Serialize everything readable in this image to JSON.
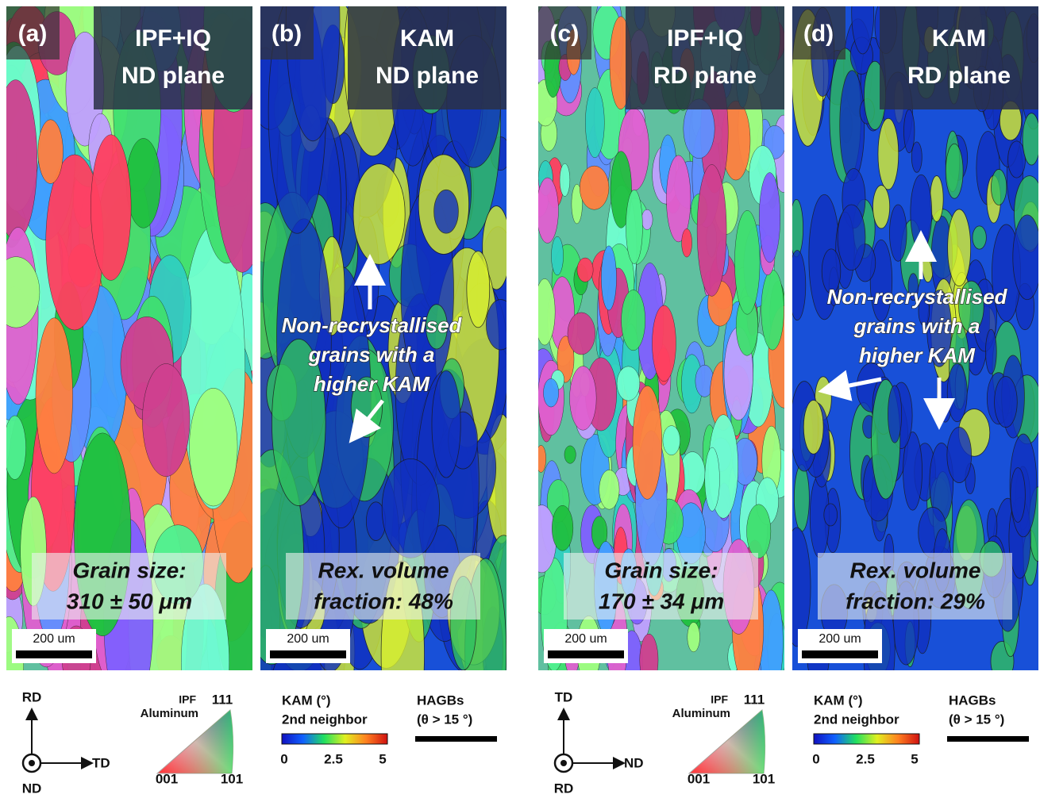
{
  "panels": [
    {
      "label": "(a)",
      "title": [
        "IPF+IQ",
        "ND plane"
      ],
      "caption": [
        "Grain size:",
        "310 ± 50 μm"
      ],
      "scale_bar": "200 um"
    },
    {
      "label": "(b)",
      "title": [
        "KAM",
        "ND plane"
      ],
      "caption": [
        "Rex. volume",
        "fraction: 48%"
      ],
      "scale_bar": "200 um",
      "annotation": [
        "Non-recrystallised",
        "grains with a",
        "higher KAM"
      ]
    },
    {
      "label": "(c)",
      "title": [
        "IPF+IQ",
        "RD plane"
      ],
      "caption": [
        "Grain size:",
        "170 ± 34 μm"
      ],
      "scale_bar": "200 um"
    },
    {
      "label": "(d)",
      "title": [
        "KAM",
        "RD plane"
      ],
      "caption": [
        "Rex. volume",
        "fraction: 29%"
      ],
      "scale_bar": "200 um",
      "annotation": [
        "Non-recrystallised",
        "grains with a",
        "higher KAM"
      ]
    }
  ],
  "legends": [
    {
      "axes": {
        "up": "RD",
        "right": "TD",
        "out": "ND"
      },
      "ipf": {
        "title": "IPF",
        "material": "Aluminum",
        "corners": [
          "111",
          "001",
          "101"
        ]
      },
      "kam": {
        "title": "KAM (°)",
        "subtitle": "2nd neighbor",
        "ticks": [
          "0",
          "2.5",
          "5"
        ]
      },
      "hagb": {
        "title": "HAGBs",
        "subtitle": "(θ > 15 °)"
      }
    },
    {
      "axes": {
        "up": "TD",
        "right": "ND",
        "out": "RD"
      },
      "ipf": {
        "title": "IPF",
        "material": "Aluminum",
        "corners": [
          "111",
          "001",
          "101"
        ]
      },
      "kam": {
        "title": "KAM (°)",
        "subtitle": "2nd neighbor",
        "ticks": [
          "0",
          "2.5",
          "5"
        ]
      },
      "hagb": {
        "title": "HAGBs",
        "subtitle": "(θ > 15 °)"
      }
    }
  ]
}
